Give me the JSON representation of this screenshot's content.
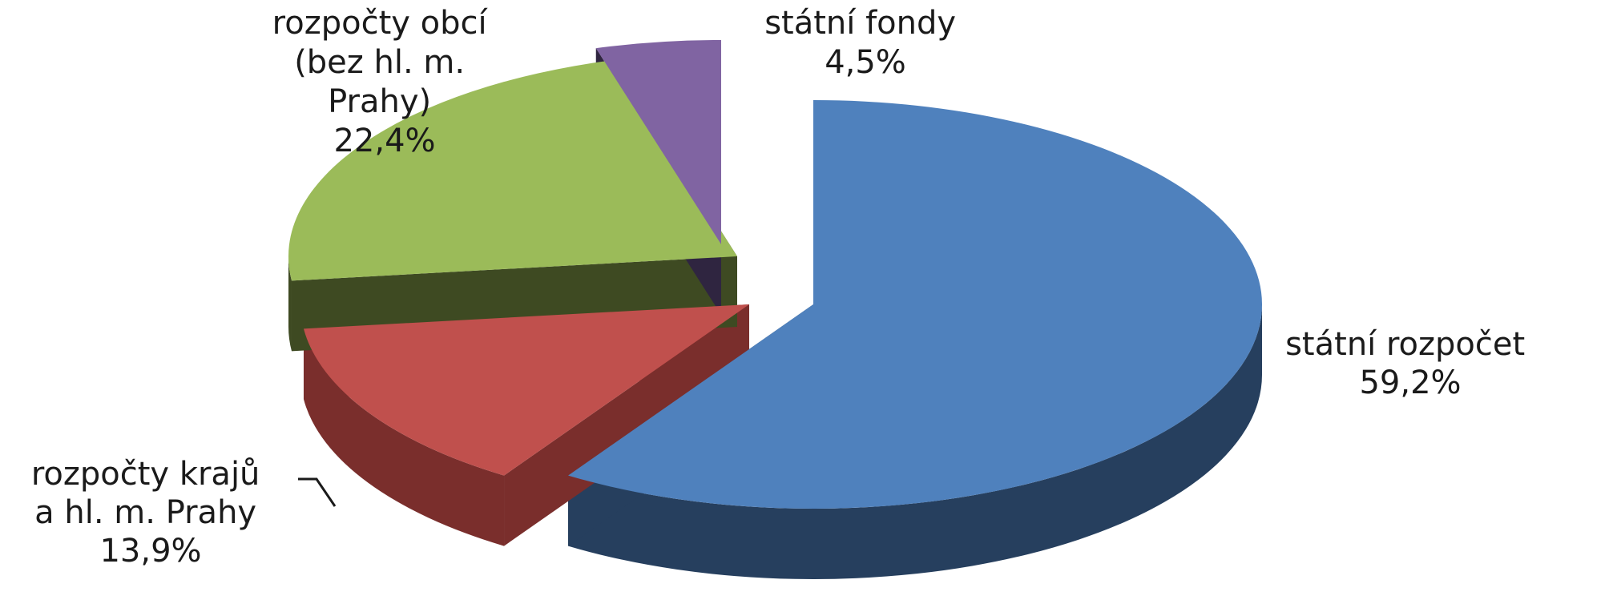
{
  "chart_data": {
    "type": "pie",
    "title": "",
    "slices": [
      {
        "label": "státní rozpočet",
        "label_lines": [
          "státní rozpočet"
        ],
        "value": 59.2,
        "value_text": "59,2%",
        "color": "#4F81BD",
        "side_color": "#263F5E"
      },
      {
        "label": "rozpočty krajů a hl. m. Prahy",
        "label_lines": [
          "rozpočty krajů",
          "a hl. m. Prahy"
        ],
        "value": 13.9,
        "value_text": "13,9%",
        "color": "#C0504D",
        "side_color": "#7A2E2C"
      },
      {
        "label": "rozpočty obcí (bez hl. m. Prahy)",
        "label_lines": [
          "rozpočty obcí",
          "(bez hl. m.",
          "Prahy)"
        ],
        "value": 22.4,
        "value_text": "22,4%",
        "color": "#9BBB59",
        "side_color": "#3E4A22"
      },
      {
        "label": "státní fondy",
        "label_lines": [
          "státní fondy"
        ],
        "value": 4.5,
        "value_text": "4,5%",
        "color": "#8064A2",
        "side_color": "#2F2540"
      }
    ],
    "style": "3d-exploded-pie",
    "legend": "none"
  }
}
